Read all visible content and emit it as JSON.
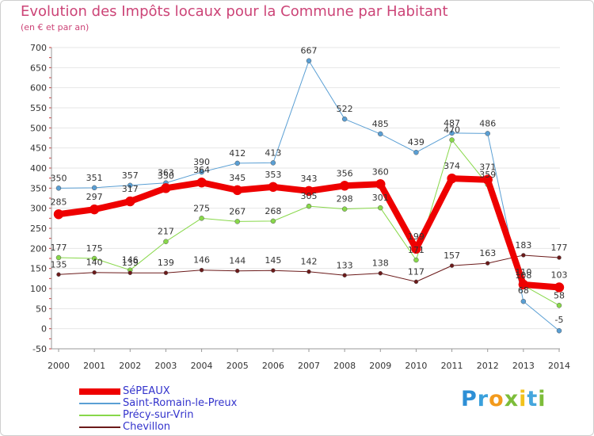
{
  "header": {
    "title": "Evolution des Impôts locaux pour la Commune par Habitant",
    "subtitle": "(en € et par an)"
  },
  "brand": {
    "letters": [
      {
        "ch": "P",
        "color": "#2d8fd6"
      },
      {
        "ch": "r",
        "color": "#3aa0dc"
      },
      {
        "ch": "o",
        "color": "#f29a1c"
      },
      {
        "ch": "x",
        "color": "#7dbd3a"
      },
      {
        "ch": "i",
        "color": "#f2c21c"
      },
      {
        "ch": "t",
        "color": "#45a6dd"
      },
      {
        "ch": "i",
        "color": "#7dbd3a"
      }
    ]
  },
  "chart_data": {
    "type": "line",
    "title": "Evolution des Impôts locaux pour la Commune par Habitant",
    "subtitle": "(en € et par an)",
    "categories": [
      "2000",
      "2001",
      "2002",
      "2003",
      "2004",
      "2005",
      "2006",
      "2007",
      "2008",
      "2009",
      "2010",
      "2011",
      "2012",
      "2013",
      "2014"
    ],
    "ylim": [
      -50,
      700
    ],
    "yticks": [
      -50,
      0,
      50,
      100,
      150,
      200,
      250,
      300,
      350,
      400,
      450,
      500,
      550,
      600,
      650,
      700
    ],
    "grid": "horizontal",
    "legend_position": "bottom-left",
    "series": [
      {
        "name": "Saint-Romain-le-Preux",
        "color": "#5a9fd4",
        "values": [
          350,
          351,
          357,
          363,
          390,
          412,
          413,
          667,
          522,
          485,
          439,
          487,
          486,
          68,
          -5
        ]
      },
      {
        "name": "Précy-sur-Vrin",
        "color": "#88d84a",
        "values": [
          177,
          175,
          146,
          217,
          275,
          267,
          268,
          305,
          298,
          301,
          171,
          470,
          359,
          108,
          58
        ]
      },
      {
        "name": "Chevillon",
        "color": "#6b1a1a",
        "values": [
          135,
          140,
          139,
          139,
          146,
          144,
          145,
          142,
          133,
          138,
          117,
          157,
          163,
          183,
          177
        ]
      },
      {
        "name": "SéPEAUX",
        "color": "#ee0000",
        "values": [
          285,
          297,
          317,
          350,
          364,
          345,
          353,
          343,
          356,
          360,
          199,
          374,
          371,
          110,
          103
        ]
      }
    ]
  }
}
